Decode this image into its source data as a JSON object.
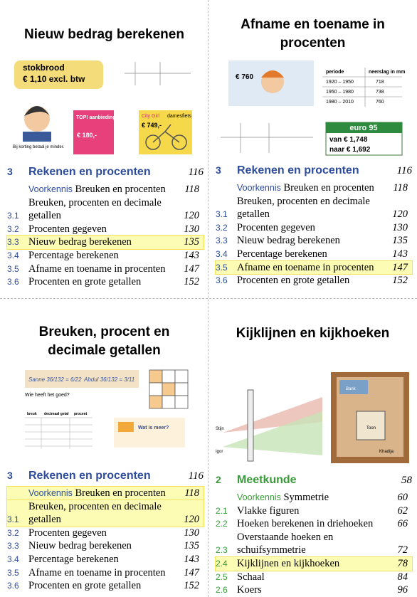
{
  "panels": [
    {
      "title": "Nieuw bedrag berekenen",
      "illustration_texts": [
        "stokbrood",
        "€ 1,10 excl. btw",
        "Bij korting betaal je minder.",
        "TOP! aanbieding",
        "€ 180,-",
        "City Girl",
        "damesfiets",
        "€ 749,-"
      ],
      "toc": {
        "color": "#2d4c9c",
        "number": "3",
        "title": "Rekenen en procenten",
        "page": 116,
        "entries": [
          {
            "prefix": "Voorkennis",
            "label": "Breuken en procenten",
            "page": 118
          },
          {
            "number": "3.1",
            "label": "Breuken, procenten en decimale getallen",
            "page": 120
          },
          {
            "number": "3.2",
            "label": "Procenten gegeven",
            "page": 130
          },
          {
            "number": "3.3",
            "label": "Nieuw bedrag berekenen",
            "page": 135,
            "highlighted": true
          },
          {
            "number": "3.4",
            "label": "Percentage berekenen",
            "page": 143
          },
          {
            "number": "3.5",
            "label": "Afname en toename in procenten",
            "page": 147
          },
          {
            "number": "3.6",
            "label": "Procenten en grote getallen",
            "page": 152
          }
        ]
      }
    },
    {
      "title": "Afname en toename in procenten",
      "illustration_texts": [
        "€ 760",
        "periode",
        "neerslag in mm",
        "1920 – 1950",
        "718",
        "1950 – 1980",
        "738",
        "1980 – 2010",
        "760",
        "euro 95",
        "van € 1,748",
        "naar € 1,692"
      ],
      "toc": {
        "color": "#2d4c9c",
        "number": "3",
        "title": "Rekenen en procenten",
        "page": 116,
        "entries": [
          {
            "prefix": "Voorkennis",
            "label": "Breuken en procenten",
            "page": 118
          },
          {
            "number": "3.1",
            "label": "Breuken, procenten en decimale getallen",
            "page": 120
          },
          {
            "number": "3.2",
            "label": "Procenten gegeven",
            "page": 130
          },
          {
            "number": "3.3",
            "label": "Nieuw bedrag berekenen",
            "page": 135
          },
          {
            "number": "3.4",
            "label": "Percentage berekenen",
            "page": 143
          },
          {
            "number": "3.5",
            "label": "Afname en toename in procenten",
            "page": 147,
            "highlighted": true
          },
          {
            "number": "3.6",
            "label": "Procenten en grote getallen",
            "page": 152
          }
        ]
      }
    },
    {
      "title": "Breuken, procent en decimale getallen",
      "illustration_texts": [
        "Sanne 36/132 = 6/22",
        "Abdul 36/132 = 3/11",
        "Wie heeft het goed?",
        "breuk",
        "decimaal getal",
        "procent",
        "Wat is meer?"
      ],
      "toc": {
        "color": "#2d4c9c",
        "number": "3",
        "title": "Rekenen en procenten",
        "page": 116,
        "entries": [
          {
            "prefix": "Voorkennis",
            "label": "Breuken en procenten",
            "page": 118,
            "highlighted": true
          },
          {
            "number": "3.1",
            "label": "Breuken, procenten en decimale getallen",
            "page": 120,
            "highlighted": true
          },
          {
            "number": "3.2",
            "label": "Procenten gegeven",
            "page": 130
          },
          {
            "number": "3.3",
            "label": "Nieuw bedrag berekenen",
            "page": 135
          },
          {
            "number": "3.4",
            "label": "Percentage berekenen",
            "page": 143
          },
          {
            "number": "3.5",
            "label": "Afname en toename in procenten",
            "page": 147
          },
          {
            "number": "3.6",
            "label": "Procenten en grote getallen",
            "page": 152
          }
        ]
      }
    },
    {
      "title": "Kijklijnen en kijkhoeken",
      "illustration_texts": [
        "Stijn",
        "Igor",
        "Bank",
        "Toon",
        "Khadija"
      ],
      "toc": {
        "color": "#3a9a3a",
        "number": "2",
        "title": "Meetkunde",
        "page": 58,
        "entries": [
          {
            "prefix": "Voorkennis",
            "label": "Symmetrie",
            "page": 60
          },
          {
            "number": "2.1",
            "label": "Vlakke figuren",
            "page": 62
          },
          {
            "number": "2.2",
            "label": "Hoeken berekenen in driehoeken",
            "page": 66
          },
          {
            "number": "2.3",
            "label": "Overstaande hoeken en schuifsymmetrie",
            "page": 72
          },
          {
            "number": "2.4",
            "label": "Kijklijnen en kijkhoeken",
            "page": 78,
            "highlighted": true
          },
          {
            "number": "2.5",
            "label": "Schaal",
            "page": 84
          },
          {
            "number": "2.6",
            "label": "Koers",
            "page": 96
          }
        ]
      }
    }
  ]
}
